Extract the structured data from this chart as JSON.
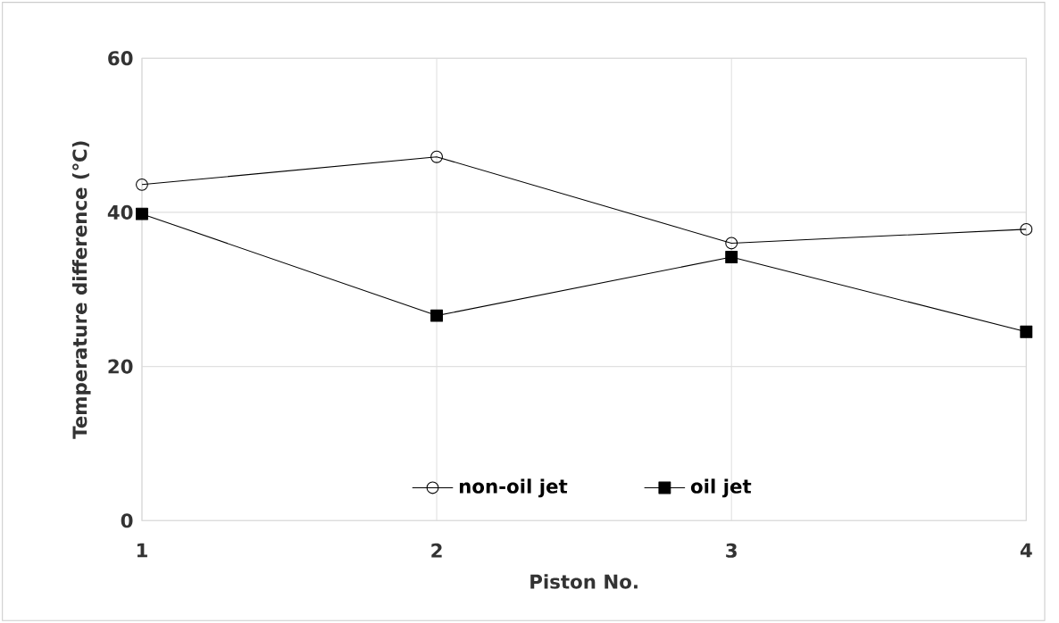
{
  "chart_data": {
    "type": "line",
    "xlabel": "Piston No.",
    "ylabel": "Temperature difference  (℃)",
    "x": [
      1,
      2,
      3,
      4
    ],
    "xlim": [
      1,
      4
    ],
    "xticks": [
      1,
      2,
      3,
      4
    ],
    "ylim": [
      0,
      60
    ],
    "yticks": [
      0,
      20,
      40,
      60
    ],
    "grid": true,
    "legend": "bottom",
    "line_style": "solid",
    "series": [
      {
        "name": "non-oil jet",
        "color": "#000000",
        "marker": "circle",
        "values": [
          43.6,
          47.2,
          36.0,
          37.8
        ]
      },
      {
        "name": "oil jet",
        "color": "#000000",
        "marker": "square",
        "values": [
          39.8,
          26.6,
          34.2,
          24.5
        ]
      }
    ]
  }
}
